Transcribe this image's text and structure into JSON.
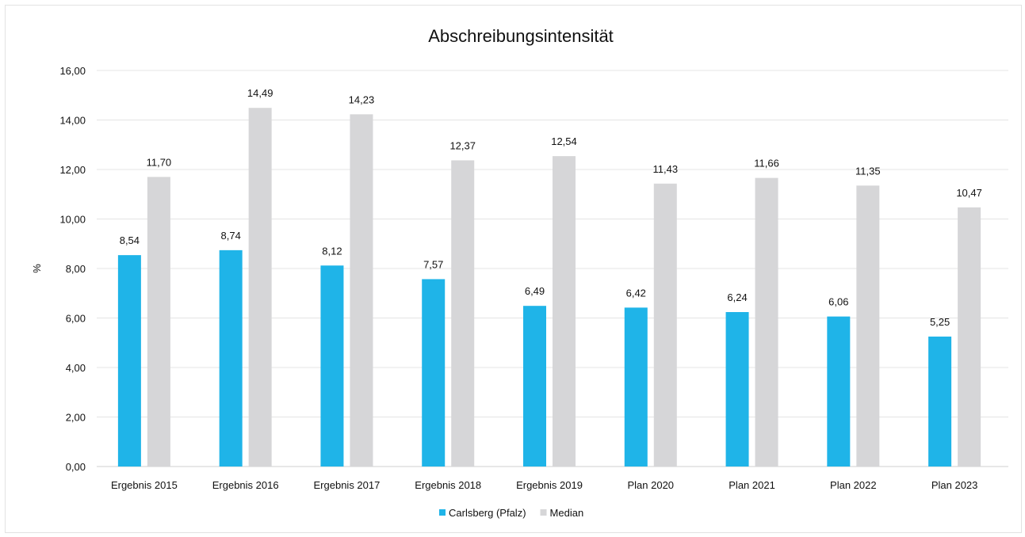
{
  "chart_data": {
    "type": "bar",
    "title": "Abschreibungsintensität",
    "ylabel": "%",
    "xlabel": "",
    "ylim": [
      0,
      16
    ],
    "y_ticks": [
      "0,00",
      "2,00",
      "4,00",
      "6,00",
      "8,00",
      "10,00",
      "12,00",
      "14,00",
      "16,00"
    ],
    "grid": true,
    "legend_position": "bottom-center",
    "categories": [
      "Ergebnis 2015",
      "Ergebnis 2016",
      "Ergebnis 2017",
      "Ergebnis 2018",
      "Ergebnis 2019",
      "Plan 2020",
      "Plan 2021",
      "Plan 2022",
      "Plan 2023"
    ],
    "series": [
      {
        "name": "Carlsberg (Pfalz)",
        "color": "#1fb4e8",
        "values": [
          8.54,
          8.74,
          8.12,
          7.57,
          6.49,
          6.42,
          6.24,
          6.06,
          5.25
        ],
        "labels": [
          "8,54",
          "8,74",
          "8,12",
          "7,57",
          "6,49",
          "6,42",
          "6,24",
          "6,06",
          "5,25"
        ]
      },
      {
        "name": "Median",
        "color": "#d6d6d8",
        "values": [
          11.7,
          14.49,
          14.23,
          12.37,
          12.54,
          11.43,
          11.66,
          11.35,
          10.47
        ],
        "labels": [
          "11,70",
          "14,49",
          "14,23",
          "12,37",
          "12,54",
          "11,43",
          "11,66",
          "11,35",
          "10,47"
        ]
      }
    ]
  }
}
